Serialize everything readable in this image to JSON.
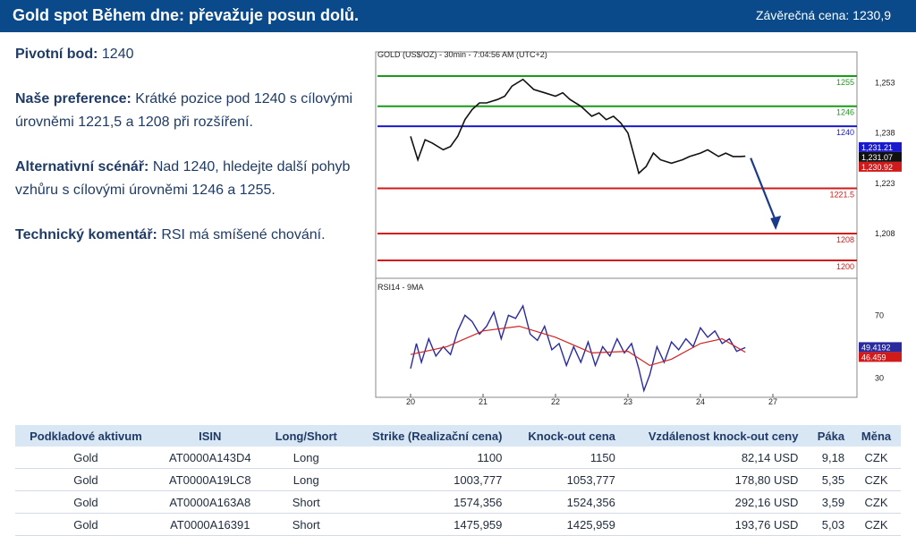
{
  "header": {
    "title": "Gold spot Během dne: převažuje posun dolů.",
    "closing_label": "Závěrečná cena: 1230,9"
  },
  "analysis": {
    "pivot_label": "Pivotní bod:",
    "pivot_value": "1240",
    "preference_label": "Naše preference:",
    "preference_text": "Krátké pozice pod 1240 s cílovými úrovněmi 1221,5 a 1208 při  rozšíření.",
    "alternative_label": "Alternativní scénář:",
    "alternative_text": "Nad 1240, hledejte další pohyb vzhůru s cílovými úrovněmi 1246 a 1255.",
    "technical_label": "Technický komentář:",
    "technical_text": "RSI má smíšené chování."
  },
  "colors": {
    "header_bg": "#0a4a8a",
    "resistance": "#1a9a1a",
    "pivot": "#1a1acc",
    "support": "#d11a1a",
    "price": "#111111",
    "rsi": "#2a2aa0",
    "rsi_ma": "#d22222",
    "arrow": "#1a3a8a"
  },
  "chart_data": [
    {
      "type": "line",
      "title": "GOLD (US$/OZ) - 30min - 7:04:56 AM (UTC+2)",
      "ylim": [
        1196,
        1259
      ],
      "y_ticks": [
        1253,
        1238,
        1223,
        1208
      ],
      "x_ticks": [
        "20",
        "21",
        "22",
        "23",
        "24",
        "27"
      ],
      "levels": [
        {
          "label": "1255",
          "value": 1255,
          "kind": "resistance"
        },
        {
          "label": "1246",
          "value": 1246,
          "kind": "resistance"
        },
        {
          "label": "1240",
          "value": 1240,
          "kind": "pivot"
        },
        {
          "label": "1221.5",
          "value": 1221.5,
          "kind": "support"
        },
        {
          "label": "1208",
          "value": 1208,
          "kind": "support"
        },
        {
          "label": "1200",
          "value": 1200,
          "kind": "support"
        }
      ],
      "price_tags": [
        "1,231.21",
        "1,231.07",
        "1,230.92"
      ],
      "series": [
        {
          "x": [
            0,
            0.1,
            0.2,
            0.3,
            0.45,
            0.55,
            0.65,
            0.75,
            0.85,
            0.95,
            1.05,
            1.2,
            1.3,
            1.4,
            1.55,
            1.7,
            1.85,
            2.0,
            2.1,
            2.2,
            2.35,
            2.5,
            2.6,
            2.7,
            2.8,
            2.9,
            3.0,
            3.1,
            3.15,
            3.25,
            3.35,
            3.45,
            3.6,
            3.75,
            3.85,
            4.0,
            4.1,
            4.25,
            4.35,
            4.45,
            4.55,
            4.62
          ],
          "values": [
            1237,
            1230,
            1236,
            1235,
            1233,
            1234,
            1237,
            1242,
            1245,
            1247,
            1247,
            1248,
            1249,
            1252,
            1254,
            1251,
            1250,
            1249,
            1250,
            1248,
            1246,
            1243,
            1244,
            1242,
            1243,
            1241,
            1238,
            1230,
            1226,
            1228,
            1232,
            1230,
            1229,
            1230,
            1231,
            1232,
            1233,
            1231,
            1232,
            1231,
            1231,
            1231.07
          ]
        }
      ]
    },
    {
      "type": "line",
      "title": "RSI14 - 9MA",
      "ylim": [
        20,
        85
      ],
      "y_ticks": [
        70,
        30
      ],
      "tags": [
        "49.4192",
        "46.459"
      ],
      "series": [
        {
          "name": "RSI14",
          "x": [
            0,
            0.08,
            0.15,
            0.25,
            0.35,
            0.45,
            0.55,
            0.65,
            0.75,
            0.85,
            0.95,
            1.05,
            1.15,
            1.25,
            1.35,
            1.45,
            1.55,
            1.65,
            1.75,
            1.85,
            1.95,
            2.05,
            2.15,
            2.25,
            2.35,
            2.45,
            2.55,
            2.65,
            2.75,
            2.85,
            2.95,
            3.05,
            3.15,
            3.22,
            3.3,
            3.4,
            3.5,
            3.6,
            3.7,
            3.8,
            3.9,
            4.0,
            4.1,
            4.2,
            4.3,
            4.4,
            4.5,
            4.62
          ],
          "values": [
            36,
            52,
            40,
            55,
            44,
            50,
            45,
            60,
            70,
            66,
            58,
            63,
            72,
            55,
            70,
            68,
            76,
            58,
            54,
            63,
            48,
            52,
            38,
            50,
            40,
            53,
            38,
            50,
            44,
            55,
            46,
            52,
            36,
            22,
            32,
            50,
            40,
            53,
            48,
            55,
            50,
            62,
            56,
            60,
            52,
            55,
            47,
            49.42
          ]
        },
        {
          "name": "9MA",
          "x": [
            0,
            0.5,
            1.0,
            1.5,
            2.0,
            2.5,
            3.0,
            3.3,
            3.6,
            4.0,
            4.3,
            4.62
          ],
          "values": [
            45,
            50,
            60,
            63,
            56,
            46,
            47,
            38,
            42,
            52,
            55,
            46.46
          ]
        }
      ]
    }
  ],
  "table": {
    "headers": [
      "Podkladové aktivum",
      "ISIN",
      "Long/Short",
      "Strike (Realizační cena)",
      "Knock-out cena",
      "Vzdálenost knock-out ceny",
      "Páka",
      "Měna"
    ],
    "rows": [
      [
        "Gold",
        "AT0000A143D4",
        "Long",
        "1100",
        "1150",
        "82,14 USD",
        "9,18",
        "CZK"
      ],
      [
        "Gold",
        "AT0000A19LC8",
        "Long",
        "1003,777",
        "1053,777",
        "178,80 USD",
        "5,35",
        "CZK"
      ],
      [
        "Gold",
        "AT0000A163A8",
        "Short",
        "1574,356",
        "1524,356",
        "292,16 USD",
        "3,59",
        "CZK"
      ],
      [
        "Gold",
        "AT0000A16391",
        "Short",
        "1475,959",
        "1425,959",
        "193,76 USD",
        "5,03",
        "CZK"
      ]
    ]
  }
}
